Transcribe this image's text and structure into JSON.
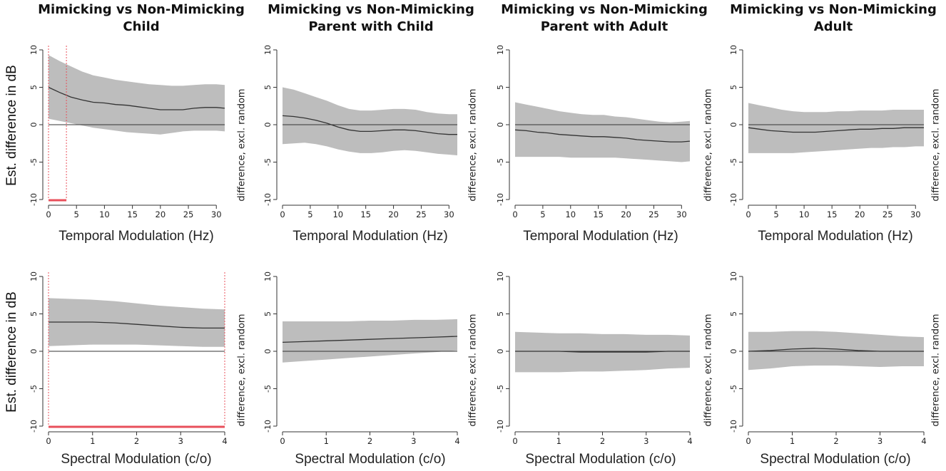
{
  "column_titles": [
    {
      "line1": "Mimicking vs Non-Mimicking",
      "line2": "Child"
    },
    {
      "line1": "Mimicking vs Non-Mimicking",
      "line2": "Parent with Child"
    },
    {
      "line1": "Mimicking vs Non-Mimicking",
      "line2": "Parent with Adult"
    },
    {
      "line1": "Mimicking vs Non-Mimicking",
      "line2": "Adult"
    }
  ],
  "row_ylabel": "Est. difference in dB",
  "side_ylabel": "difference, excl. random",
  "colors": {
    "band": "#bdbdbd",
    "line": "#333333",
    "zero": "#333333",
    "sig": "#e8505b"
  },
  "chart_data": [
    {
      "type": "line",
      "panel": "Mimicking vs Non-Mimicking Child (temporal)",
      "xlabel": "Temporal Modulation (Hz)",
      "ylabel": "Est. difference in dB",
      "xlim": [
        0,
        31.5
      ],
      "ylim": [
        -10,
        10
      ],
      "xticks": [
        0,
        5,
        10,
        15,
        20,
        25,
        30
      ],
      "yticks": [
        -10,
        -5,
        0,
        5,
        10
      ],
      "x": [
        0,
        2,
        4,
        6,
        8,
        10,
        12,
        14,
        16,
        18,
        20,
        22,
        24,
        26,
        28,
        30,
        31.5
      ],
      "series": [
        {
          "values": [
            5.0,
            4.3,
            3.7,
            3.3,
            3.0,
            2.9,
            2.7,
            2.6,
            2.4,
            2.2,
            2.0,
            2.0,
            2.0,
            2.2,
            2.3,
            2.3,
            2.2
          ]
        }
      ],
      "lower": [
        0.8,
        0.5,
        0.2,
        -0.1,
        -0.4,
        -0.6,
        -0.8,
        -1.0,
        -1.1,
        -1.2,
        -1.3,
        -1.1,
        -0.9,
        -0.8,
        -0.8,
        -0.8,
        -0.9
      ],
      "upper": [
        9.3,
        8.5,
        7.8,
        7.1,
        6.6,
        6.3,
        6.0,
        5.8,
        5.6,
        5.4,
        5.3,
        5.2,
        5.2,
        5.3,
        5.4,
        5.4,
        5.3
      ],
      "significant_x": [
        [
          0,
          3.2
        ]
      ]
    },
    {
      "type": "line",
      "panel": "Mimicking vs Non-Mimicking Parent with Child (temporal)",
      "xlabel": "Temporal Modulation (Hz)",
      "ylabel": "difference, excl. random",
      "xlim": [
        0,
        31.5
      ],
      "ylim": [
        -10,
        10
      ],
      "xticks": [
        0,
        5,
        10,
        15,
        20,
        25,
        30
      ],
      "yticks": [
        -10,
        -5,
        0,
        5,
        10
      ],
      "x": [
        0,
        2,
        4,
        6,
        8,
        10,
        12,
        14,
        16,
        18,
        20,
        22,
        24,
        26,
        28,
        30,
        31.5
      ],
      "series": [
        {
          "values": [
            1.2,
            1.1,
            0.9,
            0.6,
            0.2,
            -0.3,
            -0.7,
            -0.9,
            -0.9,
            -0.8,
            -0.7,
            -0.7,
            -0.8,
            -1.0,
            -1.2,
            -1.3,
            -1.3
          ]
        }
      ],
      "lower": [
        -2.6,
        -2.5,
        -2.4,
        -2.6,
        -2.9,
        -3.3,
        -3.6,
        -3.8,
        -3.8,
        -3.7,
        -3.5,
        -3.4,
        -3.5,
        -3.7,
        -3.9,
        -4.0,
        -4.1
      ],
      "upper": [
        5.0,
        4.7,
        4.2,
        3.7,
        3.2,
        2.6,
        2.1,
        1.9,
        1.9,
        2.0,
        2.1,
        2.1,
        2.0,
        1.7,
        1.5,
        1.4,
        1.4
      ]
    },
    {
      "type": "line",
      "panel": "Mimicking vs Non-Mimicking Parent with Adult (temporal)",
      "xlabel": "Temporal Modulation (Hz)",
      "ylabel": "difference, excl. random",
      "xlim": [
        0,
        31.5
      ],
      "ylim": [
        -10,
        10
      ],
      "xticks": [
        0,
        5,
        10,
        15,
        20,
        25,
        30
      ],
      "yticks": [
        -10,
        -5,
        0,
        5,
        10
      ],
      "x": [
        0,
        2,
        4,
        6,
        8,
        10,
        12,
        14,
        16,
        18,
        20,
        22,
        24,
        26,
        28,
        30,
        31.5
      ],
      "series": [
        {
          "values": [
            -0.7,
            -0.8,
            -1.0,
            -1.1,
            -1.3,
            -1.4,
            -1.5,
            -1.6,
            -1.6,
            -1.7,
            -1.8,
            -2.0,
            -2.1,
            -2.2,
            -2.3,
            -2.3,
            -2.2
          ]
        }
      ],
      "lower": [
        -4.3,
        -4.3,
        -4.3,
        -4.3,
        -4.3,
        -4.4,
        -4.4,
        -4.4,
        -4.4,
        -4.4,
        -4.5,
        -4.6,
        -4.7,
        -4.8,
        -4.9,
        -5.0,
        -4.9
      ],
      "upper": [
        3.0,
        2.7,
        2.4,
        2.1,
        1.8,
        1.6,
        1.4,
        1.3,
        1.3,
        1.1,
        1.0,
        0.8,
        0.6,
        0.4,
        0.3,
        0.4,
        0.5
      ]
    },
    {
      "type": "line",
      "panel": "Mimicking vs Non-Mimicking Adult (temporal)",
      "xlabel": "Temporal Modulation (Hz)",
      "ylabel": "difference, excl. random",
      "xlim": [
        0,
        31.5
      ],
      "ylim": [
        -10,
        10
      ],
      "xticks": [
        0,
        5,
        10,
        15,
        20,
        25,
        30
      ],
      "yticks": [
        -10,
        -5,
        0,
        5,
        10
      ],
      "x": [
        0,
        2,
        4,
        6,
        8,
        10,
        12,
        14,
        16,
        18,
        20,
        22,
        24,
        26,
        28,
        30,
        31.5
      ],
      "series": [
        {
          "values": [
            -0.4,
            -0.6,
            -0.8,
            -0.9,
            -1.0,
            -1.0,
            -1.0,
            -0.9,
            -0.8,
            -0.7,
            -0.6,
            -0.6,
            -0.5,
            -0.5,
            -0.4,
            -0.4,
            -0.4
          ]
        }
      ],
      "lower": [
        -3.8,
        -3.8,
        -3.8,
        -3.8,
        -3.8,
        -3.7,
        -3.6,
        -3.5,
        -3.4,
        -3.3,
        -3.2,
        -3.1,
        -3.1,
        -3.0,
        -3.0,
        -2.9,
        -2.9
      ],
      "upper": [
        2.9,
        2.6,
        2.3,
        2.0,
        1.8,
        1.7,
        1.7,
        1.7,
        1.8,
        1.8,
        1.9,
        1.9,
        1.9,
        2.0,
        2.0,
        2.0,
        2.0
      ]
    },
    {
      "type": "line",
      "panel": "Mimicking vs Non-Mimicking Child (spectral)",
      "xlabel": "Spectral Modulation (c/o)",
      "ylabel": "Est. difference in dB",
      "xlim": [
        0,
        4
      ],
      "ylim": [
        -10,
        10
      ],
      "xticks": [
        0,
        1,
        2,
        3,
        4
      ],
      "yticks": [
        -10,
        -5,
        0,
        5,
        10
      ],
      "x": [
        0,
        0.5,
        1,
        1.5,
        2,
        2.5,
        3,
        3.5,
        4
      ],
      "series": [
        {
          "values": [
            3.9,
            3.9,
            3.9,
            3.8,
            3.6,
            3.4,
            3.2,
            3.1,
            3.1
          ]
        }
      ],
      "lower": [
        0.7,
        0.8,
        0.9,
        0.9,
        0.9,
        0.8,
        0.7,
        0.6,
        0.6
      ],
      "upper": [
        7.1,
        7.0,
        6.9,
        6.7,
        6.4,
        6.1,
        5.9,
        5.7,
        5.6
      ],
      "significant_x": [
        [
          0,
          4
        ]
      ]
    },
    {
      "type": "line",
      "panel": "Mimicking vs Non-Mimicking Parent with Child (spectral)",
      "xlabel": "Spectral Modulation (c/o)",
      "ylabel": "difference, excl. random",
      "xlim": [
        0,
        4
      ],
      "ylim": [
        -10,
        10
      ],
      "xticks": [
        0,
        1,
        2,
        3,
        4
      ],
      "yticks": [
        -10,
        -5,
        0,
        5,
        10
      ],
      "x": [
        0,
        0.5,
        1,
        1.5,
        2,
        2.5,
        3,
        3.5,
        4
      ],
      "series": [
        {
          "values": [
            1.2,
            1.3,
            1.4,
            1.5,
            1.6,
            1.7,
            1.8,
            1.9,
            2.0
          ]
        }
      ],
      "lower": [
        -1.5,
        -1.3,
        -1.1,
        -0.9,
        -0.7,
        -0.5,
        -0.3,
        -0.1,
        0.1
      ],
      "upper": [
        4.0,
        4.0,
        4.0,
        4.0,
        4.1,
        4.1,
        4.2,
        4.2,
        4.3
      ]
    },
    {
      "type": "line",
      "panel": "Mimicking vs Non-Mimicking Parent with Adult (spectral)",
      "xlabel": "Spectral Modulation (c/o)",
      "ylabel": "difference, excl. random",
      "xlim": [
        0,
        4
      ],
      "ylim": [
        -10,
        10
      ],
      "xticks": [
        0,
        1,
        2,
        3,
        4
      ],
      "yticks": [
        -10,
        -5,
        0,
        5,
        10
      ],
      "x": [
        0,
        0.5,
        1,
        1.5,
        2,
        2.5,
        3,
        3.5,
        4
      ],
      "series": [
        {
          "values": [
            0.0,
            0.0,
            0.0,
            -0.1,
            -0.1,
            -0.1,
            -0.1,
            0.0,
            0.0
          ]
        }
      ],
      "lower": [
        -2.8,
        -2.8,
        -2.8,
        -2.7,
        -2.7,
        -2.6,
        -2.5,
        -2.3,
        -2.2
      ],
      "upper": [
        2.6,
        2.5,
        2.4,
        2.4,
        2.3,
        2.3,
        2.2,
        2.2,
        2.1
      ]
    },
    {
      "type": "line",
      "panel": "Mimicking vs Non-Mimicking Adult (spectral)",
      "xlabel": "Spectral Modulation (c/o)",
      "ylabel": "difference, excl. random",
      "xlim": [
        0,
        4
      ],
      "ylim": [
        -10,
        10
      ],
      "xticks": [
        0,
        1,
        2,
        3,
        4
      ],
      "yticks": [
        -10,
        -5,
        0,
        5,
        10
      ],
      "x": [
        0,
        0.5,
        1,
        1.5,
        2,
        2.5,
        3,
        3.5,
        4
      ],
      "series": [
        {
          "values": [
            0.0,
            0.1,
            0.3,
            0.4,
            0.3,
            0.1,
            0.0,
            0.0,
            0.0
          ]
        }
      ],
      "lower": [
        -2.5,
        -2.3,
        -2.0,
        -1.9,
        -1.9,
        -2.0,
        -2.1,
        -2.0,
        -2.0
      ],
      "upper": [
        2.6,
        2.6,
        2.7,
        2.7,
        2.6,
        2.4,
        2.2,
        2.0,
        1.9
      ]
    }
  ]
}
